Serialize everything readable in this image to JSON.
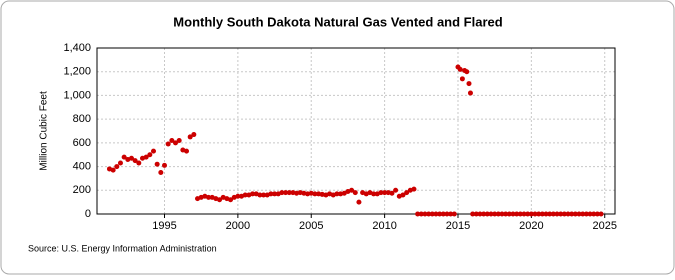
{
  "chart_data": {
    "type": "scatter",
    "title": "Monthly South Dakota Natural Gas Vented and Flared",
    "y_label": "Million Cubic Feet",
    "source": "Source: U.S. Energy Information Administration",
    "color": "#cc0000",
    "grid": true,
    "xlim": [
      1990.4,
      2025.7
    ],
    "xticks": [
      1995,
      2000,
      2005,
      2010,
      2015,
      2020,
      2025
    ],
    "ylim": [
      0,
      1400
    ],
    "yticks": [
      0,
      200,
      400,
      600,
      800,
      {
        "value": 1000,
        "label": "1,000"
      },
      {
        "value": 1200,
        "label": "1,200"
      },
      {
        "value": 1400,
        "label": "1,400"
      }
    ],
    "x": [
      1991.25,
      1991.5,
      1991.75,
      1992.0,
      1992.25,
      1992.5,
      1992.75,
      1993.0,
      1993.25,
      1993.5,
      1993.75,
      1994.0,
      1994.25,
      1994.5,
      1994.75,
      1995.0,
      1995.25,
      1995.5,
      1995.75,
      1996.0,
      1996.25,
      1996.5,
      1996.75,
      1997.0,
      1997.25,
      1997.5,
      1997.75,
      1998.0,
      1998.25,
      1998.5,
      1998.75,
      1999.0,
      1999.25,
      1999.5,
      1999.75,
      2000.0,
      2000.25,
      2000.5,
      2000.75,
      2001.0,
      2001.25,
      2001.5,
      2001.75,
      2002.0,
      2002.25,
      2002.5,
      2002.75,
      2003.0,
      2003.25,
      2003.5,
      2003.75,
      2004.0,
      2004.25,
      2004.5,
      2004.75,
      2005.0,
      2005.25,
      2005.5,
      2005.75,
      2006.0,
      2006.25,
      2006.5,
      2006.75,
      2007.0,
      2007.25,
      2007.5,
      2007.75,
      2008.0,
      2008.25,
      2008.5,
      2008.75,
      2009.0,
      2009.25,
      2009.5,
      2009.75,
      2010.0,
      2010.25,
      2010.5,
      2010.75,
      2011.0,
      2011.25,
      2011.5,
      2011.75,
      2012.0,
      2012.25,
      2012.5,
      2012.75,
      2013.0,
      2013.25,
      2013.5,
      2013.75,
      2014.0,
      2014.25,
      2014.5,
      2014.75,
      2015.0,
      2015.15,
      2015.3,
      2015.45,
      2015.6,
      2015.75,
      2015.85,
      2016.0,
      2016.25,
      2016.5,
      2016.75,
      2017.0,
      2017.25,
      2017.5,
      2017.75,
      2018.0,
      2018.25,
      2018.5,
      2018.75,
      2019.0,
      2019.25,
      2019.5,
      2019.75,
      2020.0,
      2020.25,
      2020.5,
      2020.75,
      2021.0,
      2021.25,
      2021.5,
      2021.75,
      2022.0,
      2022.25,
      2022.5,
      2022.75,
      2023.0,
      2023.25,
      2023.5,
      2023.75,
      2024.0,
      2024.25,
      2024.5,
      2024.75
    ],
    "values": [
      380,
      370,
      400,
      430,
      480,
      460,
      470,
      450,
      430,
      470,
      480,
      500,
      530,
      420,
      350,
      410,
      590,
      620,
      600,
      620,
      540,
      530,
      650,
      670,
      130,
      140,
      150,
      140,
      140,
      130,
      120,
      140,
      130,
      120,
      140,
      150,
      150,
      160,
      160,
      170,
      170,
      160,
      160,
      160,
      170,
      170,
      170,
      180,
      180,
      180,
      180,
      175,
      180,
      175,
      170,
      175,
      170,
      170,
      165,
      160,
      170,
      160,
      170,
      170,
      175,
      190,
      200,
      180,
      100,
      180,
      170,
      180,
      170,
      170,
      180,
      180,
      180,
      175,
      200,
      150,
      160,
      180,
      200,
      210,
      0,
      0,
      0,
      0,
      0,
      0,
      0,
      0,
      0,
      0,
      0,
      1240,
      1220,
      1140,
      1210,
      1200,
      1100,
      1020,
      0,
      0,
      0,
      0,
      0,
      0,
      0,
      0,
      0,
      0,
      0,
      0,
      0,
      0,
      0,
      0,
      0,
      0,
      0,
      0,
      0,
      0,
      0,
      0,
      0,
      0,
      0,
      0,
      0,
      0,
      0,
      0,
      0,
      0,
      0,
      0
    ]
  }
}
